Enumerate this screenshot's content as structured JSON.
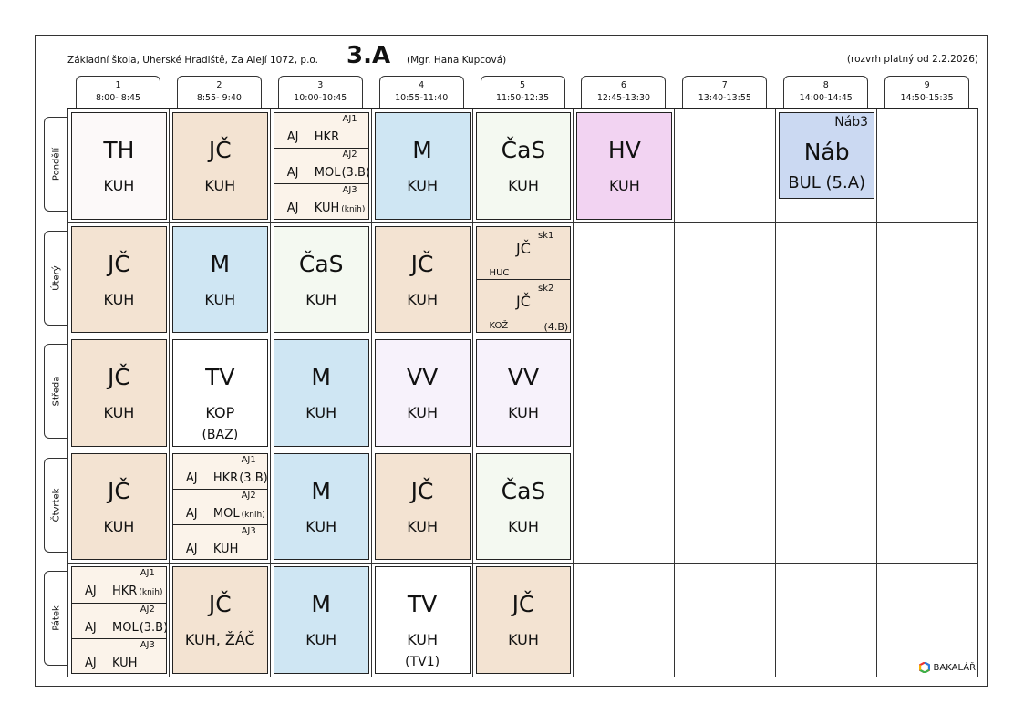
{
  "header": {
    "school": "Základní škola, Uherské Hradiště, Za Alejí 1072, p.o.",
    "class": "3.A",
    "teacher": "(Mgr. Hana Kupcová)",
    "valid": "(rozvrh platný od 2.2.2026)"
  },
  "colors": {
    "TH": "#fcf9f9",
    "JC": "#f3e3d2",
    "AJ": "#fbf3ea",
    "M": "#cfe6f3",
    "CaS": "#f4f9f1",
    "HV": "#f2d3f2",
    "Nab": "#cbd9f2",
    "VV": "#f7f2fb",
    "TV": "#ffffff"
  },
  "periods": [
    {
      "num": "1",
      "time": "8:00- 8:45"
    },
    {
      "num": "2",
      "time": "8:55- 9:40"
    },
    {
      "num": "3",
      "time": "10:00-10:45"
    },
    {
      "num": "4",
      "time": "10:55-11:40"
    },
    {
      "num": "5",
      "time": "11:50-12:35"
    },
    {
      "num": "6",
      "time": "12:45-13:30"
    },
    {
      "num": "7",
      "time": "13:40-13:55"
    },
    {
      "num": "8",
      "time": "14:00-14:45"
    },
    {
      "num": "9",
      "time": "14:50-15:35"
    }
  ],
  "days": [
    {
      "name": "Pondělí",
      "lessons": [
        {
          "subject": "TH",
          "teacher": "KUH",
          "color": "TH"
        },
        {
          "subject": "JČ",
          "teacher": "KUH",
          "color": "JC"
        },
        {
          "color": "AJ",
          "parts": [
            {
              "group": "AJ1",
              "subject": "AJ",
              "teacher": "HKR",
              "note": ""
            },
            {
              "group": "AJ2",
              "subject": "AJ",
              "teacher": "MOL",
              "note": "(3.B)"
            },
            {
              "group": "AJ3",
              "subject": "AJ",
              "teacher": "KUH",
              "note": "(knih)"
            }
          ]
        },
        {
          "subject": "M",
          "teacher": "KUH",
          "color": "M"
        },
        {
          "subject": "ČaS",
          "teacher": "KUH",
          "color": "CaS"
        },
        {
          "subject": "HV",
          "teacher": "KUH",
          "color": "HV"
        },
        null,
        {
          "subject": "Náb",
          "teacher": "BUL  (5.A)",
          "group": "Náb3",
          "color": "Nab",
          "short": true
        },
        null
      ]
    },
    {
      "name": "Úterý",
      "lessons": [
        {
          "subject": "JČ",
          "teacher": "KUH",
          "color": "JC"
        },
        {
          "subject": "M",
          "teacher": "KUH",
          "color": "M"
        },
        {
          "subject": "ČaS",
          "teacher": "KUH",
          "color": "CaS"
        },
        {
          "subject": "JČ",
          "teacher": "KUH",
          "color": "JC"
        },
        {
          "color": "JC",
          "halves": [
            {
              "group": "sk1",
              "subject": "JČ",
              "teacher": "HUC",
              "note": ""
            },
            {
              "group": "sk2",
              "subject": "JČ",
              "teacher": "KOŽ",
              "note": "(4.B)"
            }
          ]
        },
        null,
        null,
        null,
        null
      ]
    },
    {
      "name": "Středa",
      "lessons": [
        {
          "subject": "JČ",
          "teacher": "KUH",
          "color": "JC"
        },
        {
          "subject": "TV",
          "teacher": "KOP",
          "room": "(BAZ)",
          "color": "TV"
        },
        {
          "subject": "M",
          "teacher": "KUH",
          "color": "M"
        },
        {
          "subject": "VV",
          "teacher": "KUH",
          "color": "VV"
        },
        {
          "subject": "VV",
          "teacher": "KUH",
          "color": "VV"
        },
        null,
        null,
        null,
        null
      ]
    },
    {
      "name": "Čtvrtek",
      "lessons": [
        {
          "subject": "JČ",
          "teacher": "KUH",
          "color": "JC"
        },
        {
          "color": "AJ",
          "parts": [
            {
              "group": "AJ1",
              "subject": "AJ",
              "teacher": "HKR",
              "note": "(3.B)"
            },
            {
              "group": "AJ2",
              "subject": "AJ",
              "teacher": "MOL",
              "note": "(knih)"
            },
            {
              "group": "AJ3",
              "subject": "AJ",
              "teacher": "KUH",
              "note": ""
            }
          ]
        },
        {
          "subject": "M",
          "teacher": "KUH",
          "color": "M"
        },
        {
          "subject": "JČ",
          "teacher": "KUH",
          "color": "JC"
        },
        {
          "subject": "ČaS",
          "teacher": "KUH",
          "color": "CaS"
        },
        null,
        null,
        null,
        null
      ]
    },
    {
      "name": "Pátek",
      "lessons": [
        {
          "color": "AJ",
          "parts": [
            {
              "group": "AJ1",
              "subject": "AJ",
              "teacher": "HKR",
              "note": "(knih)"
            },
            {
              "group": "AJ2",
              "subject": "AJ",
              "teacher": "MOL",
              "note": "(3.B)"
            },
            {
              "group": "AJ3",
              "subject": "AJ",
              "teacher": "KUH",
              "note": ""
            }
          ]
        },
        {
          "subject": "JČ",
          "teacher": "KUH, ŽÁČ",
          "color": "JC"
        },
        {
          "subject": "M",
          "teacher": "KUH",
          "color": "M"
        },
        {
          "subject": "TV",
          "teacher": "KUH",
          "room": "(TV1)",
          "color": "TV"
        },
        {
          "subject": "JČ",
          "teacher": "KUH",
          "color": "JC"
        },
        null,
        null,
        null,
        null
      ]
    }
  ],
  "logo": {
    "text": "BAKALÁŘI",
    "icon": "hexagon-logo-icon"
  }
}
